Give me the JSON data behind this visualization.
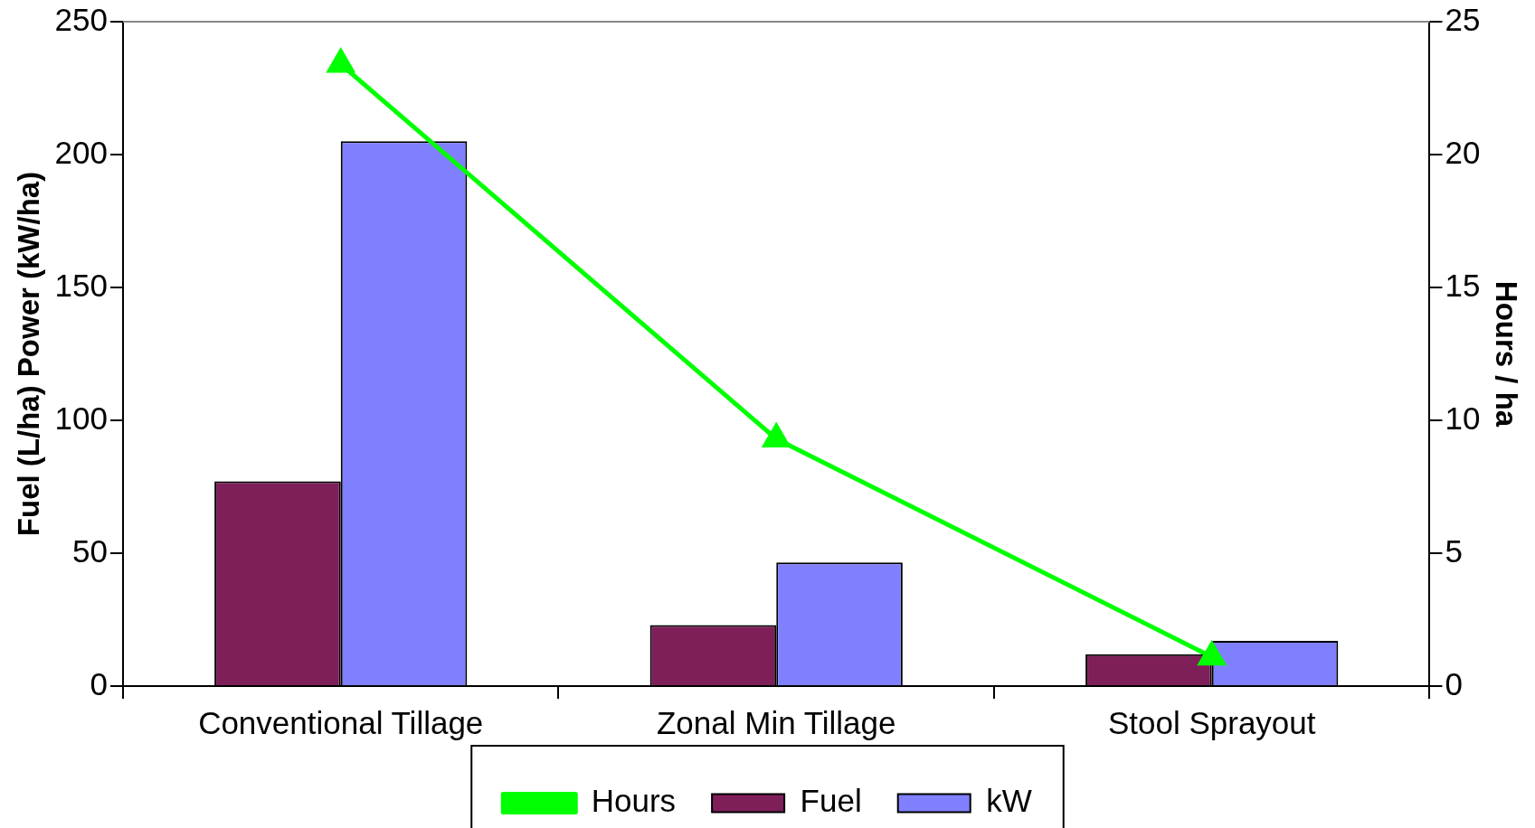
{
  "chart_data": {
    "type": "bar",
    "categories": [
      "Conventional Tillage",
      "Zonal Min Tillage",
      "Stool Sprayout"
    ],
    "series": [
      {
        "name": "Fuel",
        "color": "#7f1f5a",
        "values": [
          77,
          23,
          12
        ]
      },
      {
        "name": "kW",
        "color": "#8080ff",
        "values": [
          205,
          46.5,
          17
        ]
      },
      {
        "name": "Hours",
        "type": "line",
        "axis": "y2",
        "color": "#00ff00",
        "values": [
          23.4,
          9.3,
          1.1
        ]
      }
    ],
    "ylabel": "Fuel (L/ha) Power (kW/ha)",
    "y2label": "Hours / ha",
    "ylim": [
      0,
      250
    ],
    "yticks": [
      0,
      50,
      100,
      150,
      200,
      250
    ],
    "y2lim": [
      0,
      25
    ],
    "y2ticks": [
      0,
      5,
      10,
      15,
      20,
      25
    ],
    "legend": "bottom",
    "marker": "triangle"
  }
}
